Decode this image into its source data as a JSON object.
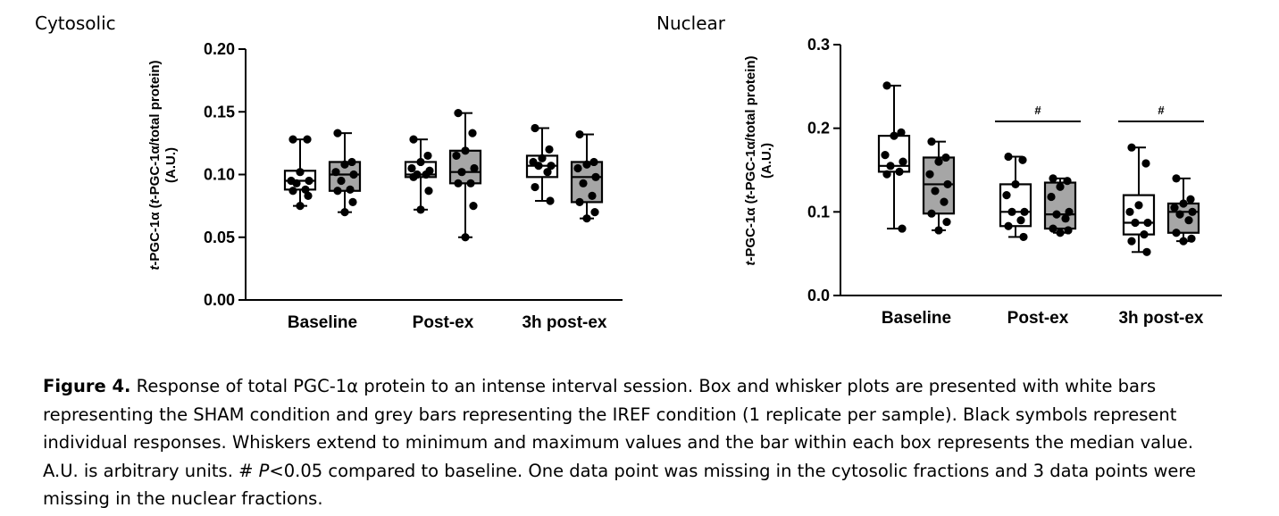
{
  "chart_data": [
    {
      "type": "boxplot",
      "title": "Cytosolic",
      "ylabel": "t-PGC-1α (t-PGC-1α/total protein) (A.U.)",
      "ylabel_italic_prefix": "t",
      "ylabel_line1_parts": [
        "t",
        "-PGC-1α (",
        "t",
        "-PGC-1α/total protein)"
      ],
      "ylabel_line2": "(A.U.)",
      "ylim": [
        0,
        0.2
      ],
      "yticks": [
        "0.00",
        "0.05",
        "0.10",
        "0.15",
        "0.20"
      ],
      "ytick_values": [
        0,
        0.05,
        0.1,
        0.15,
        0.2
      ],
      "categories": [
        "Baseline",
        "Post-ex",
        "3h post-ex"
      ],
      "series": [
        {
          "condition": "SHAM",
          "fill": "#ffffff",
          "boxes": [
            {
              "min": 0.075,
              "q1": 0.088,
              "median": 0.095,
              "q3": 0.103,
              "max": 0.128,
              "points": [
                0.128,
                0.128,
                0.102,
                0.095,
                0.095,
                0.093,
                0.088,
                0.087,
                0.083,
                0.075
              ]
            },
            {
              "min": 0.072,
              "q1": 0.098,
              "median": 0.1,
              "q3": 0.11,
              "max": 0.128,
              "points": [
                0.128,
                0.115,
                0.11,
                0.105,
                0.103,
                0.1,
                0.1,
                0.098,
                0.087,
                0.072
              ]
            },
            {
              "min": 0.079,
              "q1": 0.098,
              "median": 0.107,
              "q3": 0.115,
              "max": 0.137,
              "points": [
                0.137,
                0.12,
                0.113,
                0.11,
                0.107,
                0.107,
                0.102,
                0.09,
                0.079
              ]
            }
          ]
        },
        {
          "condition": "IREF",
          "fill": "#a6a6a6",
          "boxes": [
            {
              "min": 0.07,
              "q1": 0.087,
              "median": 0.1,
              "q3": 0.11,
              "max": 0.133,
              "points": [
                0.133,
                0.11,
                0.108,
                0.102,
                0.1,
                0.095,
                0.088,
                0.087,
                0.078,
                0.07
              ]
            },
            {
              "min": 0.05,
              "q1": 0.093,
              "median": 0.102,
              "q3": 0.119,
              "max": 0.149,
              "points": [
                0.149,
                0.133,
                0.119,
                0.115,
                0.105,
                0.102,
                0.093,
                0.093,
                0.075,
                0.05
              ]
            },
            {
              "min": 0.065,
              "q1": 0.078,
              "median": 0.098,
              "q3": 0.11,
              "max": 0.132,
              "points": [
                0.132,
                0.11,
                0.108,
                0.105,
                0.098,
                0.093,
                0.083,
                0.078,
                0.07,
                0.065
              ]
            }
          ]
        }
      ]
    },
    {
      "type": "boxplot",
      "title": "Nuclear",
      "ylabel": "t-PGC-1α (t-PGC-1α/total protein) (A.U.)",
      "ylabel_line1_parts": [
        "t",
        "-PGC-1α (",
        "t",
        "-PGC-1α/total protein)"
      ],
      "ylabel_line2": "(A.U.)",
      "ylim": [
        0,
        0.3
      ],
      "yticks": [
        "0.0",
        "0.1",
        "0.2",
        "0.3"
      ],
      "ytick_values": [
        0,
        0.1,
        0.2,
        0.3
      ],
      "categories": [
        "Baseline",
        "Post-ex",
        "3h post-ex"
      ],
      "annotations": [
        {
          "category": 1,
          "text": "#"
        },
        {
          "category": 2,
          "text": "#"
        }
      ],
      "series": [
        {
          "condition": "SHAM",
          "fill": "#ffffff",
          "boxes": [
            {
              "min": 0.08,
              "q1": 0.148,
              "median": 0.155,
              "q3": 0.191,
              "max": 0.251,
              "points": [
                0.251,
                0.195,
                0.191,
                0.168,
                0.16,
                0.155,
                0.148,
                0.145,
                0.08
              ]
            },
            {
              "min": 0.07,
              "q1": 0.083,
              "median": 0.1,
              "q3": 0.133,
              "max": 0.166,
              "points": [
                0.166,
                0.162,
                0.133,
                0.12,
                0.1,
                0.1,
                0.09,
                0.083,
                0.07
              ]
            },
            {
              "min": 0.052,
              "q1": 0.073,
              "median": 0.087,
              "q3": 0.12,
              "max": 0.177,
              "points": [
                0.177,
                0.158,
                0.108,
                0.1,
                0.087,
                0.087,
                0.073,
                0.065,
                0.052
              ]
            }
          ]
        },
        {
          "condition": "IREF",
          "fill": "#a6a6a6",
          "boxes": [
            {
              "min": 0.078,
              "q1": 0.098,
              "median": 0.133,
              "q3": 0.165,
              "max": 0.184,
              "points": [
                0.184,
                0.165,
                0.16,
                0.145,
                0.133,
                0.125,
                0.112,
                0.098,
                0.088,
                0.078
              ]
            },
            {
              "min": 0.075,
              "q1": 0.08,
              "median": 0.097,
              "q3": 0.135,
              "max": 0.14,
              "points": [
                0.14,
                0.137,
                0.13,
                0.118,
                0.1,
                0.097,
                0.092,
                0.08,
                0.078,
                0.075
              ]
            },
            {
              "min": 0.065,
              "q1": 0.075,
              "median": 0.1,
              "q3": 0.11,
              "max": 0.14,
              "points": [
                0.14,
                0.115,
                0.11,
                0.105,
                0.1,
                0.097,
                0.09,
                0.075,
                0.068,
                0.065
              ]
            }
          ]
        }
      ]
    }
  ],
  "caption": {
    "label": "Figure 4.",
    "line1": " Response of total PGC-1α protein to an intense interval session. Box and whisker plots are presented with white bars",
    "line2": "representing the SHAM condition and grey bars representing the IREF condition (1 replicate per sample). Black symbols represent",
    "line3": "individual responses. Whiskers extend to minimum and maximum values and the bar within each box represents the median value.",
    "line4_pre": "A.U. is arbitrary units. # ",
    "line4_italic": "P",
    "line4_post": "<0.05 compared to baseline. One data point was missing in the cytosolic fractions and 3 data points were",
    "line5": "missing in the nuclear fractions."
  }
}
